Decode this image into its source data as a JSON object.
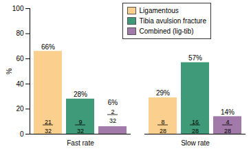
{
  "chart_data": {
    "type": "bar",
    "categories": [
      "Fast rate",
      "Slow rate"
    ],
    "series": [
      {
        "name": "Ligamentous",
        "color": "#fbd08f",
        "values": [
          66,
          29
        ],
        "value_labels": [
          "66%",
          "29%"
        ],
        "numerators": [
          21,
          8
        ],
        "denominators": [
          32,
          28
        ]
      },
      {
        "name": "Tibia avulsion fracture",
        "color": "#3e9a78",
        "values": [
          28,
          57
        ],
        "value_labels": [
          "28%",
          "57%"
        ],
        "numerators": [
          9,
          16
        ],
        "denominators": [
          32,
          28
        ]
      },
      {
        "name": "Combined (lig-tib)",
        "color": "#a27aa9",
        "values": [
          6,
          14
        ],
        "value_labels": [
          "6%",
          "14%"
        ],
        "numerators": [
          2,
          4
        ],
        "denominators": [
          32,
          28
        ]
      }
    ],
    "y_label": "%",
    "ylim": [
      0,
      100
    ],
    "yticks": [
      0,
      20,
      40,
      60,
      80,
      100
    ],
    "grid": false,
    "data_labels": true,
    "legend": "top-right"
  }
}
